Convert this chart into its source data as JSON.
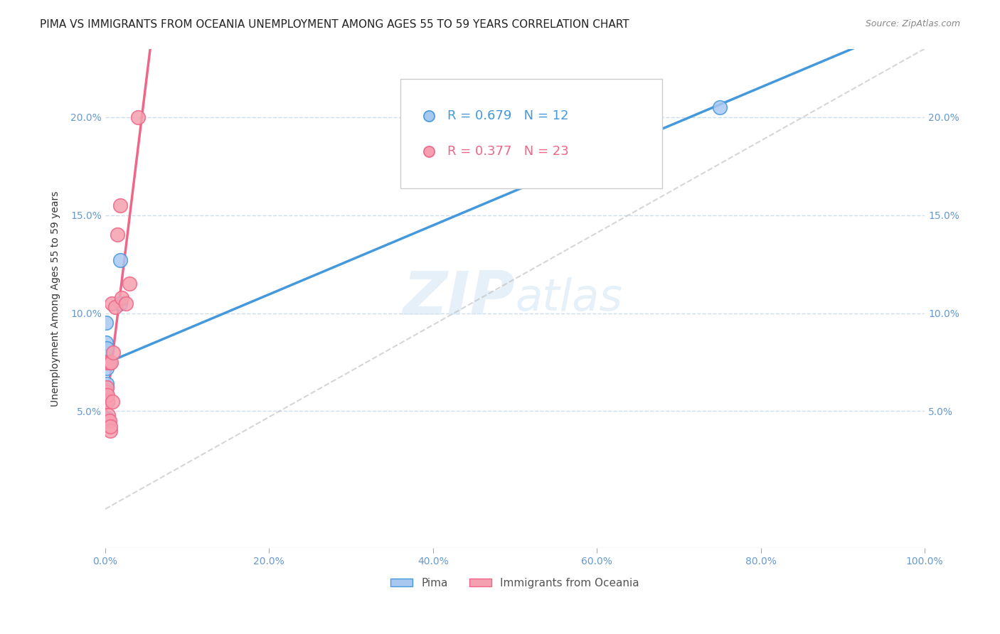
{
  "title": "PIMA VS IMMIGRANTS FROM OCEANIA UNEMPLOYMENT AMONG AGES 55 TO 59 YEARS CORRELATION CHART",
  "source": "Source: ZipAtlas.com",
  "ylabel": "Unemployment Among Ages 55 to 59 years",
  "background_color": "#ffffff",
  "pima_x": [
    0.001,
    0.001,
    0.002,
    0.002,
    0.002,
    0.002,
    0.003,
    0.003,
    0.003,
    0.018,
    0.018,
    0.75
  ],
  "pima_y": [
    0.085,
    0.095,
    0.062,
    0.064,
    0.072,
    0.082,
    0.045,
    0.046,
    0.046,
    0.127,
    0.105,
    0.205
  ],
  "pima_R": 0.679,
  "pima_N": 12,
  "pima_color": "#a8c8f0",
  "pima_line_color": "#4499dd",
  "oceania_x": [
    0.001,
    0.002,
    0.002,
    0.003,
    0.003,
    0.003,
    0.004,
    0.004,
    0.005,
    0.005,
    0.006,
    0.006,
    0.007,
    0.008,
    0.009,
    0.01,
    0.012,
    0.015,
    0.018,
    0.02,
    0.025,
    0.03,
    0.04
  ],
  "oceania_y": [
    0.06,
    0.062,
    0.075,
    0.055,
    0.055,
    0.058,
    0.045,
    0.048,
    0.045,
    0.075,
    0.04,
    0.042,
    0.075,
    0.105,
    0.055,
    0.08,
    0.103,
    0.14,
    0.155,
    0.108,
    0.105,
    0.115,
    0.2
  ],
  "oceania_R": 0.377,
  "oceania_N": 23,
  "oceania_color": "#f5a0b0",
  "oceania_line_color": "#ee6688",
  "xlim": [
    0.0,
    1.0
  ],
  "ylim": [
    -0.02,
    0.235
  ],
  "yticks": [
    0.05,
    0.1,
    0.15,
    0.2
  ],
  "ytick_labels": [
    "5.0%",
    "10.0%",
    "15.0%",
    "20.0%"
  ],
  "xticks": [
    0.0,
    0.2,
    0.4,
    0.6,
    0.8,
    1.0
  ],
  "xtick_labels": [
    "0.0%",
    "20.0%",
    "40.0%",
    "60.0%",
    "80.0%",
    "100.0%"
  ],
  "grid_color": "#ccddee",
  "tick_color": "#6699cc",
  "title_fontsize": 11,
  "label_fontsize": 10,
  "axis_fontsize": 10
}
